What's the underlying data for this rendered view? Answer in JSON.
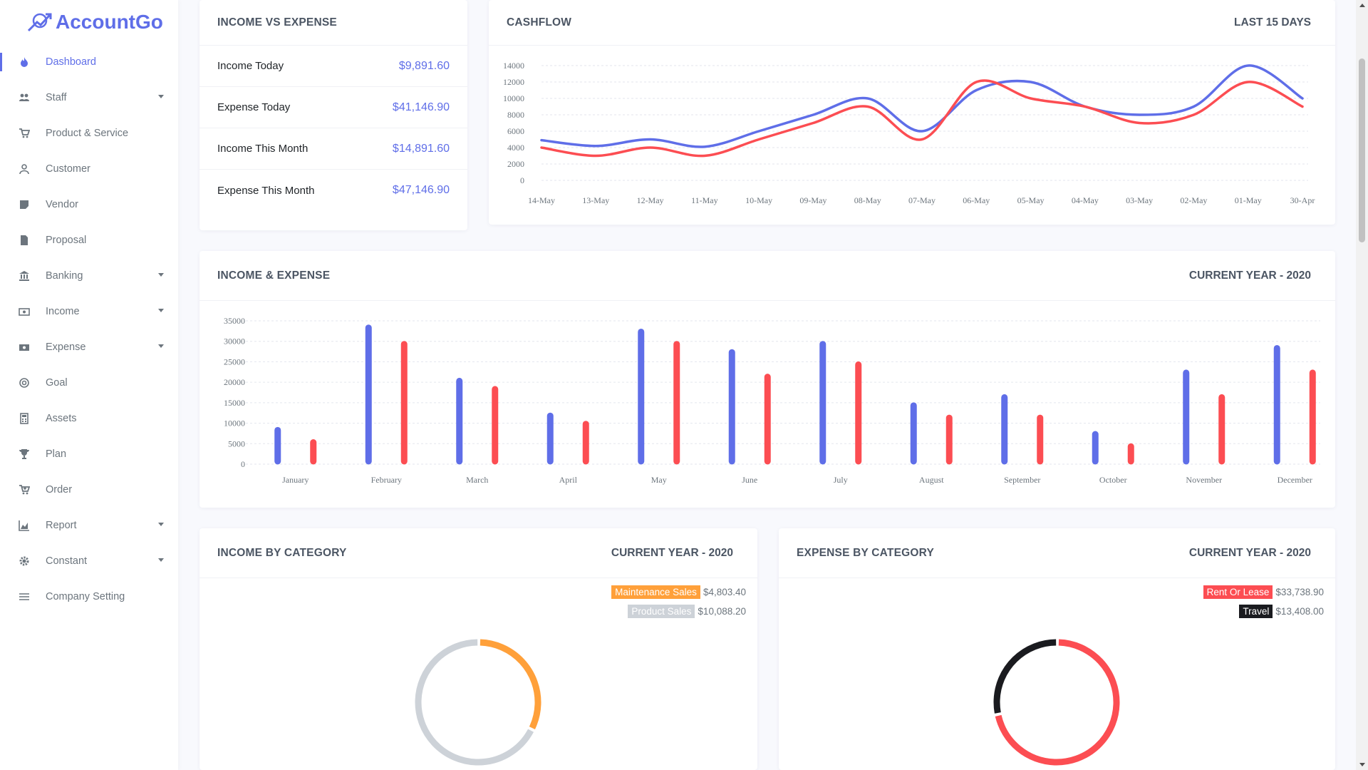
{
  "app": {
    "name": "AccountGo"
  },
  "sidebar": {
    "items": [
      {
        "label": "Dashboard",
        "icon": "fire-icon",
        "active": true,
        "caret": false
      },
      {
        "label": "Staff",
        "icon": "users-icon",
        "active": false,
        "caret": true
      },
      {
        "label": "Product & Service",
        "icon": "cart-icon",
        "active": false,
        "caret": false
      },
      {
        "label": "Customer",
        "icon": "user-icon",
        "active": false,
        "caret": false
      },
      {
        "label": "Vendor",
        "icon": "note-icon",
        "active": false,
        "caret": false
      },
      {
        "label": "Proposal",
        "icon": "file-icon",
        "active": false,
        "caret": false
      },
      {
        "label": "Banking",
        "icon": "bank-icon",
        "active": false,
        "caret": true
      },
      {
        "label": "Income",
        "icon": "money-icon",
        "active": false,
        "caret": true
      },
      {
        "label": "Expense",
        "icon": "money-bill-icon",
        "active": false,
        "caret": true
      },
      {
        "label": "Goal",
        "icon": "target-icon",
        "active": false,
        "caret": false
      },
      {
        "label": "Assets",
        "icon": "calculator-icon",
        "active": false,
        "caret": false
      },
      {
        "label": "Plan",
        "icon": "trophy-icon",
        "active": false,
        "caret": false
      },
      {
        "label": "Order",
        "icon": "cart-plus-icon",
        "active": false,
        "caret": false
      },
      {
        "label": "Report",
        "icon": "chart-area-icon",
        "active": false,
        "caret": true
      },
      {
        "label": "Constant",
        "icon": "cog-icon",
        "active": false,
        "caret": true
      },
      {
        "label": "Company Setting",
        "icon": "sliders-icon",
        "active": false,
        "caret": false
      }
    ]
  },
  "income_vs_expense": {
    "title": "INCOME VS EXPENSE",
    "rows": [
      {
        "label": "Income Today",
        "value": "$9,891.60"
      },
      {
        "label": "Expense Today",
        "value": "$41,146.90"
      },
      {
        "label": "Income This Month",
        "value": "$14,891.60"
      },
      {
        "label": "Expense This Month",
        "value": "$47,146.90"
      }
    ]
  },
  "cashflow": {
    "title": "CASHFLOW",
    "period": "LAST 15 DAYS"
  },
  "income_expense": {
    "title": "INCOME & EXPENSE",
    "period": "CURRENT YEAR - 2020"
  },
  "income_category": {
    "title": "INCOME BY CATEGORY",
    "period": "CURRENT YEAR - 2020",
    "items": [
      {
        "name": "Maintenance Sales",
        "value": "$4,803.40",
        "color": "#ffa03a"
      },
      {
        "name": "Product Sales",
        "value": "$10,088.20",
        "color": "#cdd2d8"
      }
    ]
  },
  "expense_category": {
    "title": "EXPENSE BY CATEGORY",
    "period": "CURRENT YEAR - 2020",
    "items": [
      {
        "name": "Rent Or Lease",
        "value": "$33,738.90",
        "color": "#fc4d52"
      },
      {
        "name": "Travel",
        "value": "$13,408.00",
        "color": "#1a1b1f"
      }
    ]
  },
  "colors": {
    "accent": "#5f6ee8",
    "income": "#5f6ee8",
    "expense": "#fc4d52"
  },
  "chart_data": [
    {
      "type": "line",
      "categories": [
        "14-May",
        "13-May",
        "12-May",
        "11-May",
        "10-May",
        "09-May",
        "08-May",
        "07-May",
        "06-May",
        "05-May",
        "04-May",
        "03-May",
        "02-May",
        "01-May",
        "30-Apr"
      ],
      "ylim": [
        0,
        14000
      ],
      "yticks": [
        0,
        2000,
        4000,
        6000,
        8000,
        10000,
        12000,
        14000
      ],
      "grid": true,
      "series": [
        {
          "color": "#5f6ee8",
          "values": [
            4900,
            4200,
            5000,
            4100,
            6000,
            8000,
            10000,
            6000,
            11000,
            12000,
            9000,
            8000,
            9000,
            14000,
            10000
          ]
        },
        {
          "color": "#fc4d52",
          "values": [
            4000,
            3000,
            4000,
            3000,
            5000,
            7000,
            9000,
            5000,
            12000,
            10000,
            9000,
            7000,
            8000,
            12000,
            9000
          ]
        }
      ]
    },
    {
      "type": "bar",
      "categories": [
        "January",
        "February",
        "March",
        "April",
        "May",
        "June",
        "July",
        "August",
        "September",
        "October",
        "November",
        "December"
      ],
      "ylim": [
        0,
        35000
      ],
      "yticks": [
        0,
        5000,
        10000,
        15000,
        20000,
        25000,
        30000,
        35000
      ],
      "grid": true,
      "series": [
        {
          "color": "#5f6ee8",
          "values": [
            9000,
            34000,
            21000,
            12500,
            33000,
            28000,
            30000,
            15000,
            17000,
            8000,
            23000,
            29000
          ]
        },
        {
          "color": "#fc4d52",
          "values": [
            6000,
            30000,
            19000,
            10500,
            30000,
            22000,
            25000,
            12000,
            12000,
            5000,
            17000,
            23000
          ]
        }
      ]
    },
    {
      "type": "pie",
      "categories": [
        "Maintenance Sales",
        "Product Sales"
      ],
      "values": [
        4803.4,
        10088.2
      ],
      "colors": [
        "#ffa03a",
        "#cdd2d8"
      ]
    },
    {
      "type": "pie",
      "categories": [
        "Rent Or Lease",
        "Travel"
      ],
      "values": [
        33738.9,
        13408.0
      ],
      "colors": [
        "#fc4d52",
        "#1a1b1f"
      ]
    }
  ]
}
